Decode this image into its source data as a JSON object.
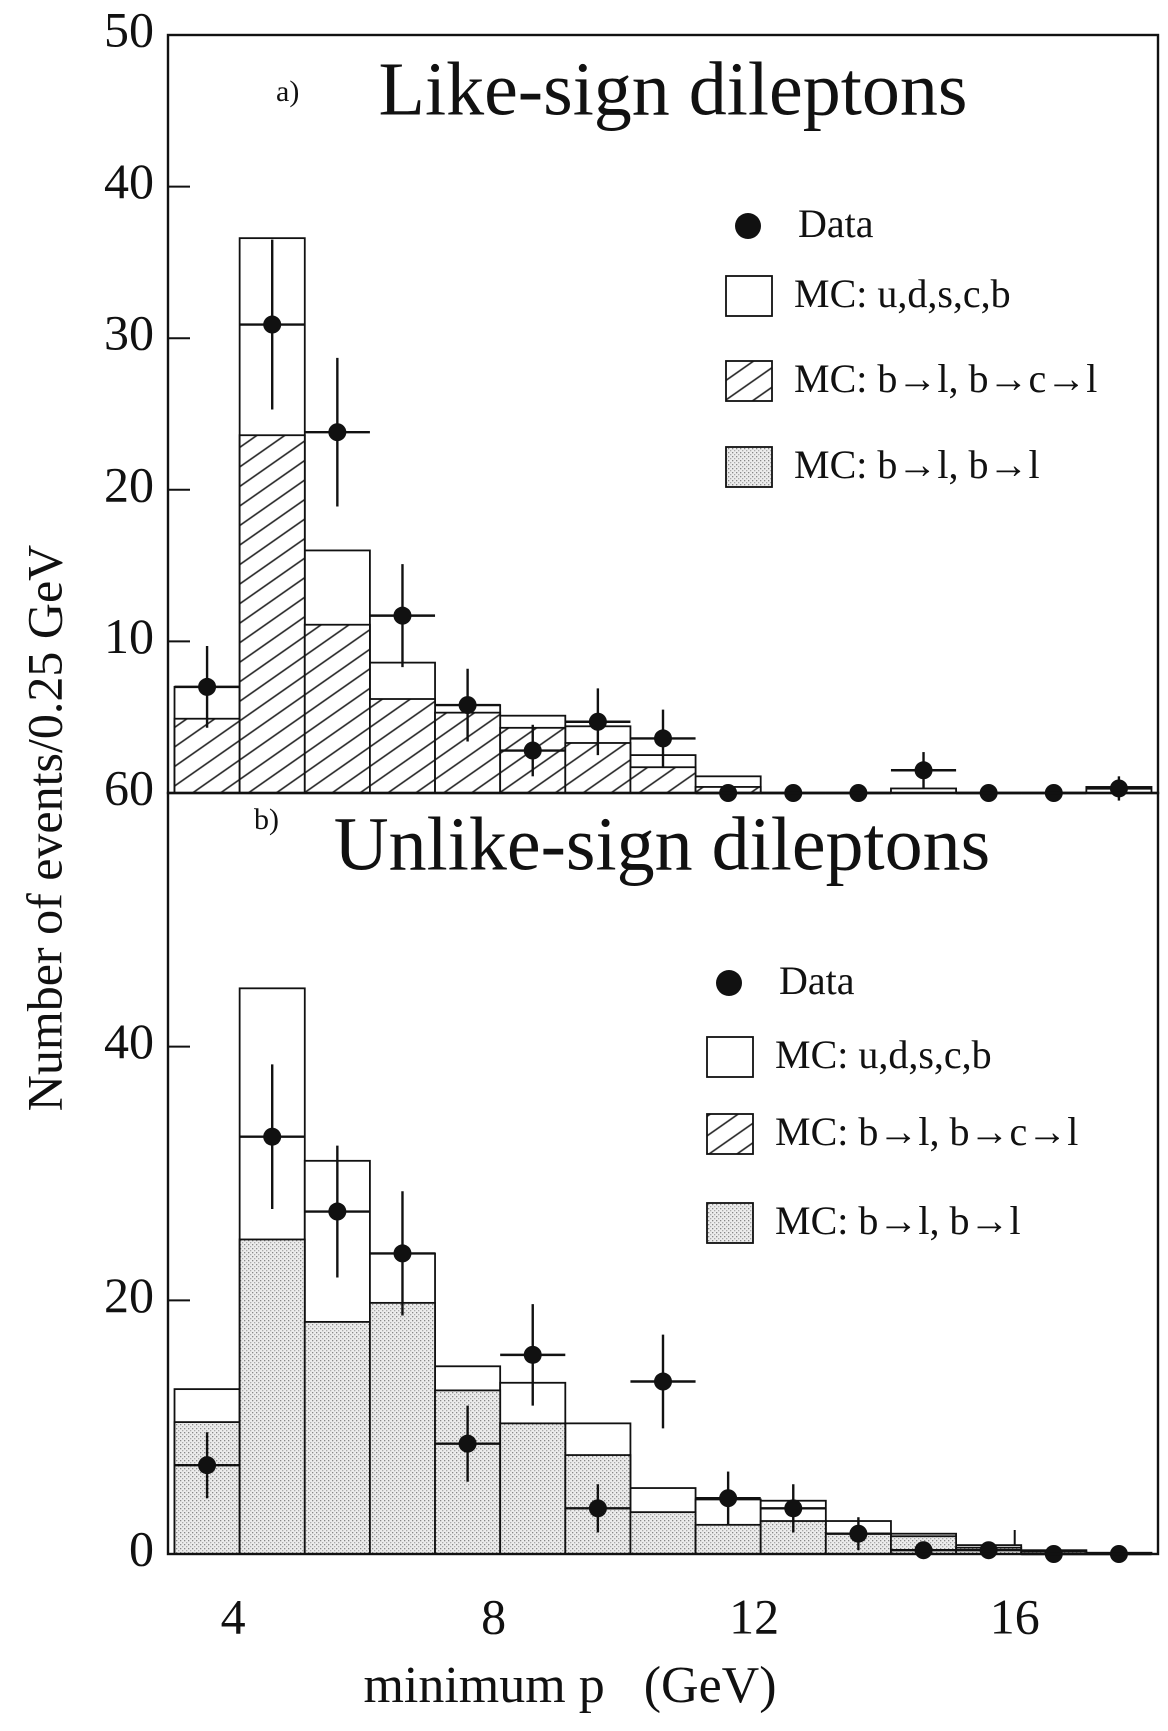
{
  "chart_data": [
    {
      "type": "histogram",
      "label": "a)",
      "title": "Like-sign dileptons",
      "y_label": "Number of events/0.25 GeV",
      "bins": [
        3.1,
        4.1,
        5.1,
        6.1,
        7.1,
        8.1,
        9.1,
        10.1,
        11.1,
        12.1,
        13.1,
        14.1,
        15.1,
        16.1,
        17.1,
        18.1
      ],
      "series": [
        {
          "name": "MC: u,d,s,c,b",
          "style": "open",
          "values": [
            7.0,
            36.6,
            16.0,
            8.6,
            5.8,
            5.1,
            4.4,
            2.5,
            1.1,
            0,
            0,
            0.3,
            0,
            0,
            0.4
          ]
        },
        {
          "name": "MC: b→l, b→c→l",
          "style": "hatched",
          "values": [
            4.9,
            23.6,
            11.1,
            6.2,
            5.3,
            4.3,
            3.3,
            1.7,
            0.4,
            0,
            0,
            0,
            0,
            0,
            0
          ]
        },
        {
          "name": "MC: b→l, b→l",
          "style": "dotted"
        }
      ],
      "data": {
        "name": "Data",
        "x": [
          3.6,
          4.6,
          5.6,
          6.6,
          7.6,
          8.6,
          9.6,
          10.6,
          11.6,
          12.6,
          13.6,
          14.6,
          15.6,
          16.6,
          17.6
        ],
        "values": [
          7.0,
          30.9,
          23.8,
          11.7,
          5.8,
          2.8,
          4.7,
          3.6,
          0,
          0,
          0,
          1.5,
          0,
          0,
          0.3
        ],
        "errors": [
          2.7,
          5.6,
          4.9,
          3.4,
          2.4,
          1.7,
          2.2,
          1.9,
          0,
          0,
          0,
          1.2,
          0,
          0,
          0.8
        ],
        "x_error": 0.5
      },
      "xlim": [
        3,
        18.2
      ],
      "ylim": [
        0,
        50
      ],
      "yticks": [
        10,
        20,
        30,
        40,
        50
      ]
    },
    {
      "type": "histogram",
      "label": "b)",
      "title": "Unlike-sign dileptons",
      "x_label": "minimum p   (GeV)",
      "bins": [
        3.1,
        4.1,
        5.1,
        6.1,
        7.1,
        8.1,
        9.1,
        10.1,
        11.1,
        12.1,
        13.1,
        14.1,
        15.1,
        16.1,
        17.1,
        18.1
      ],
      "series": [
        {
          "name": "MC: u,d,s,c,b",
          "style": "open",
          "values": [
            13.0,
            44.6,
            31.0,
            23.7,
            14.8,
            13.5,
            10.3,
            5.2,
            4.3,
            4.2,
            2.6,
            1.6,
            0.7,
            0.3,
            0.1
          ]
        },
        {
          "name": "MC: b→l, b→c→l",
          "style": "hatched"
        },
        {
          "name": "MC: b→l, b→l",
          "style": "dotted",
          "values": [
            10.4,
            24.8,
            18.3,
            19.8,
            12.9,
            10.3,
            7.8,
            3.3,
            2.3,
            2.6,
            1.6,
            1.4,
            0.5,
            0.2,
            0
          ]
        }
      ],
      "data": {
        "name": "Data",
        "x": [
          3.6,
          4.6,
          5.6,
          6.6,
          7.6,
          8.6,
          9.6,
          10.6,
          11.6,
          12.6,
          13.6,
          14.6,
          15.6,
          16.6,
          17.6
        ],
        "values": [
          7.0,
          32.9,
          27.0,
          23.7,
          8.7,
          15.7,
          3.6,
          13.6,
          4.4,
          3.6,
          1.6,
          0.3,
          0.3,
          0,
          0
        ],
        "errors": [
          2.6,
          5.7,
          5.2,
          4.9,
          3.0,
          4.0,
          1.9,
          3.7,
          2.1,
          1.9,
          1.3,
          0,
          0,
          0,
          0
        ],
        "x_error": 0.5
      },
      "xlim": [
        3,
        18.2
      ],
      "ylim": [
        0,
        60
      ],
      "yticks": [
        0,
        20,
        40,
        60
      ],
      "xticks": [
        4,
        8,
        12,
        16
      ]
    }
  ]
}
